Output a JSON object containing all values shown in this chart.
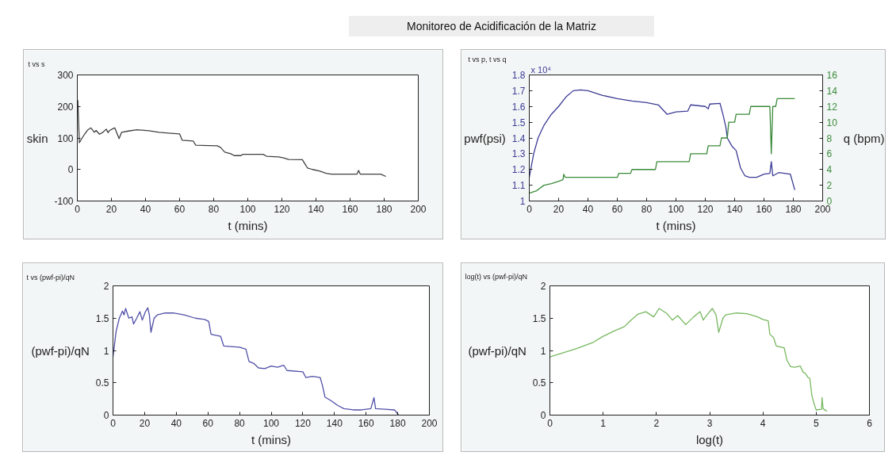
{
  "chart_data": [
    {
      "type": "line",
      "title": "Monitoreo de Acidificación de la Matriz",
      "subtitle": "t vs s",
      "xlabel": "t (mins)",
      "ylabel": "skin",
      "series": [
        {
          "color": "#404040",
          "x": [
            0.3,
            1.2,
            4,
            6,
            8,
            10,
            11,
            13,
            15,
            17,
            18,
            19,
            21,
            22,
            23,
            24.5,
            26,
            30,
            35,
            42,
            48,
            55,
            60,
            61.5,
            68,
            69.5,
            82,
            84,
            86.5,
            90,
            92,
            96,
            97,
            109,
            111,
            118,
            121,
            124,
            132,
            133.5,
            135,
            138,
            142,
            146,
            149,
            164,
            165,
            166,
            178,
            181
          ],
          "values": [
            220,
            85,
            110,
            125,
            132,
            118,
            124,
            112,
            118,
            128,
            117,
            124,
            130,
            132,
            118,
            98,
            118,
            122,
            126,
            123,
            118,
            115,
            113,
            93,
            90,
            77,
            75,
            70,
            55,
            50,
            44,
            44,
            48,
            48,
            42,
            40,
            37,
            32,
            31,
            18,
            5,
            0,
            -5,
            -12,
            -15,
            -15,
            -3,
            -15,
            -15,
            -22
          ]
        }
      ],
      "xlim": [
        0,
        200
      ],
      "ylim": [
        -100,
        300
      ],
      "xticks": [
        0,
        20,
        40,
        60,
        80,
        100,
        120,
        140,
        160,
        180,
        200
      ],
      "yticks": [
        -100,
        0,
        100,
        200,
        300
      ]
    },
    {
      "type": "line",
      "subtitle": "t vs p, t vs q",
      "xlabel": "t (mins)",
      "ylabel": "pwf(psi)",
      "y2label": "q (bpm)",
      "annotations": [
        "x 10⁴"
      ],
      "series": [
        {
          "color": "#3c3c96",
          "x": [
            0,
            1,
            3,
            6,
            10,
            15,
            20,
            25,
            30,
            35,
            40,
            50,
            60,
            70,
            80,
            88,
            91,
            94,
            98,
            100,
            108,
            110,
            115,
            120,
            122,
            123,
            130,
            132,
            134,
            135,
            138,
            141,
            144,
            147,
            150,
            155,
            160,
            164,
            165,
            166,
            170,
            178,
            181
          ],
          "values": [
            1.15,
            1.2,
            1.3,
            1.4,
            1.48,
            1.55,
            1.6,
            1.66,
            1.7,
            1.705,
            1.7,
            1.67,
            1.65,
            1.635,
            1.625,
            1.61,
            1.58,
            1.55,
            1.56,
            1.565,
            1.57,
            1.61,
            1.605,
            1.6,
            1.585,
            1.615,
            1.62,
            1.55,
            1.47,
            1.4,
            1.35,
            1.32,
            1.21,
            1.16,
            1.15,
            1.15,
            1.17,
            1.175,
            1.25,
            1.16,
            1.18,
            1.17,
            1.07
          ]
        },
        {
          "color": "#3a8a3a",
          "axis": "y2",
          "x": [
            0,
            5,
            10,
            15,
            20,
            23,
            23.5,
            24.5,
            40,
            60,
            61,
            69,
            70,
            86,
            87,
            109,
            110,
            121,
            122,
            130,
            131,
            135,
            136,
            140,
            141,
            150,
            151,
            164,
            165,
            166,
            168,
            169,
            181
          ],
          "values": [
            1,
            1.3,
            2,
            2.2,
            2.5,
            2.7,
            3.4,
            3,
            3,
            3,
            3.5,
            3.5,
            4,
            4,
            5,
            5,
            6,
            6,
            7,
            7,
            8,
            8,
            10,
            10,
            11,
            11,
            12,
            12,
            6,
            12,
            12,
            13,
            13
          ]
        }
      ],
      "xlim": [
        0,
        200
      ],
      "ylim": [
        1,
        1.8
      ],
      "xticks": [
        0,
        20,
        40,
        60,
        80,
        100,
        120,
        140,
        160,
        180,
        200
      ],
      "yticks": [
        1,
        1.1,
        1.2,
        1.3,
        1.4,
        1.5,
        1.6,
        1.7,
        1.8
      ],
      "y2lim": [
        0,
        16
      ],
      "y2ticks": [
        0,
        2,
        4,
        6,
        8,
        10,
        12,
        14,
        16
      ]
    },
    {
      "type": "line",
      "subtitle": "t vs (pwf-pi)/qN",
      "xlabel": "t (mins)",
      "ylabel": "(pwf-pi)/qN",
      "series": [
        {
          "color": "#5050a8",
          "x": [
            0,
            1,
            2,
            4,
            6,
            7,
            8,
            10,
            12,
            13,
            15,
            17,
            18.5,
            20.5,
            22,
            23,
            24,
            26,
            28,
            33,
            38,
            45,
            52,
            58,
            60.5,
            62,
            68,
            70,
            80,
            84,
            86,
            89,
            92,
            96,
            100,
            104,
            108,
            110,
            120,
            122,
            126,
            131,
            132.5,
            134,
            138,
            142,
            146,
            152,
            157,
            163,
            165,
            166,
            172,
            178,
            180.5
          ],
          "values": [
            0.9,
            1.1,
            1.3,
            1.5,
            1.61,
            1.55,
            1.65,
            1.5,
            1.52,
            1.41,
            1.5,
            1.6,
            1.47,
            1.6,
            1.66,
            1.55,
            1.28,
            1.5,
            1.55,
            1.58,
            1.58,
            1.55,
            1.5,
            1.48,
            1.45,
            1.25,
            1.22,
            1.07,
            1.05,
            1.02,
            0.83,
            0.8,
            0.73,
            0.72,
            0.76,
            0.74,
            0.77,
            0.69,
            0.67,
            0.58,
            0.6,
            0.58,
            0.45,
            0.28,
            0.22,
            0.15,
            0.1,
            0.08,
            0.08,
            0.1,
            0.27,
            0.1,
            0.09,
            0.08,
            0
          ]
        }
      ],
      "xlim": [
        0,
        200
      ],
      "ylim": [
        0,
        2
      ],
      "xticks": [
        0,
        20,
        40,
        60,
        80,
        100,
        120,
        140,
        160,
        180,
        200
      ],
      "yticks": [
        0,
        0.5,
        1,
        1.5,
        2
      ]
    },
    {
      "type": "line",
      "subtitle": "log(t) vs (pwf-pi)/qN",
      "xlabel": "log(t)",
      "ylabel": "(pwf-pi)/qN",
      "series": [
        {
          "color": "#78b860",
          "x": [
            0,
            0.5,
            0.8,
            1.0,
            1.2,
            1.4,
            1.5,
            1.65,
            1.8,
            1.95,
            2.05,
            2.2,
            2.3,
            2.4,
            2.55,
            2.7,
            2.82,
            2.88,
            2.95,
            3.05,
            3.12,
            3.17,
            3.25,
            3.3,
            3.5,
            3.7,
            3.9,
            4.0,
            4.1,
            4.13,
            4.2,
            4.25,
            4.4,
            4.45,
            4.52,
            4.6,
            4.7,
            4.75,
            4.8,
            4.85,
            4.88,
            4.92,
            4.97,
            5.0,
            5.1,
            5.11,
            5.13,
            5.2
          ],
          "values": [
            0.9,
            1.03,
            1.12,
            1.22,
            1.3,
            1.37,
            1.45,
            1.56,
            1.6,
            1.52,
            1.65,
            1.57,
            1.47,
            1.54,
            1.4,
            1.52,
            1.6,
            1.47,
            1.55,
            1.65,
            1.55,
            1.28,
            1.5,
            1.55,
            1.58,
            1.57,
            1.52,
            1.48,
            1.46,
            1.25,
            1.2,
            1.07,
            1.04,
            0.85,
            0.75,
            0.74,
            0.76,
            0.67,
            0.64,
            0.58,
            0.57,
            0.3,
            0.15,
            0.08,
            0.09,
            0.27,
            0.1,
            0.06
          ]
        }
      ],
      "xlim": [
        0,
        6
      ],
      "ylim": [
        0,
        2
      ],
      "xticks": [
        0,
        1,
        2,
        3,
        4,
        5,
        6
      ],
      "yticks": [
        0,
        0.5,
        1,
        1.5,
        2
      ]
    }
  ]
}
